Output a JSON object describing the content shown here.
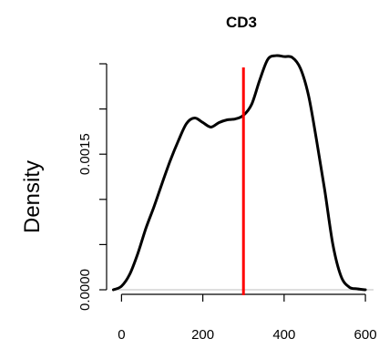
{
  "chart_data": {
    "type": "line",
    "title": "CD3",
    "xlabel": "",
    "ylabel": "Density",
    "xlim": [
      -30,
      620
    ],
    "ylim": [
      0,
      0.0025
    ],
    "x_ticks": [
      0,
      200,
      400,
      600
    ],
    "x_tick_labels": [
      "0",
      "200",
      "400",
      "600"
    ],
    "y_ticks": [
      0,
      0.0005,
      0.001,
      0.0015,
      0.002,
      0.0025
    ],
    "y_tick_labels": [
      "0.0000",
      "",
      "",
      "0.0015",
      "",
      ""
    ],
    "grid": false,
    "series": [
      {
        "color": "#000000",
        "x": [
          -20,
          0,
          20,
          40,
          60,
          80,
          100,
          120,
          140,
          160,
          180,
          200,
          220,
          240,
          260,
          280,
          300,
          320,
          340,
          360,
          380,
          400,
          420,
          440,
          460,
          480,
          500,
          520,
          540,
          560,
          580,
          600
        ],
        "y": [
          0.0,
          4e-05,
          0.00017,
          0.0004,
          0.00068,
          0.00092,
          0.00118,
          0.00143,
          0.00165,
          0.00184,
          0.0019,
          0.00185,
          0.0018,
          0.00185,
          0.00188,
          0.00189,
          0.00193,
          0.00205,
          0.00232,
          0.00255,
          0.00259,
          0.00258,
          0.00257,
          0.00245,
          0.00215,
          0.00165,
          0.0011,
          0.0005,
          0.00015,
          3e-05,
          1e-05,
          0.0
        ]
      }
    ],
    "reference_lines": [
      {
        "x": 300,
        "color": "#ff0000"
      }
    ],
    "baseline": {
      "y": 0,
      "color": "#bebebe"
    }
  }
}
